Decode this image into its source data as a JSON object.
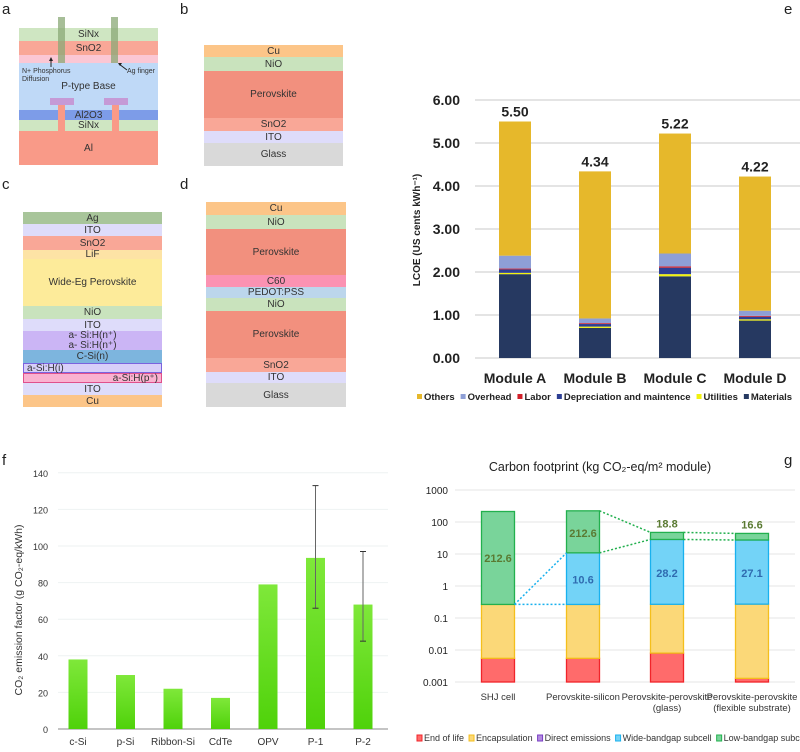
{
  "panels": {
    "a": {
      "label": "a",
      "layers": [
        {
          "name": "SiNx",
          "color": "#cfe6c2"
        },
        {
          "name": "SnO2",
          "sub": "2",
          "base": "SnO",
          "color": "#f9a797"
        },
        {
          "name": "",
          "color": "#fbc7d4"
        },
        {
          "name": "P-type Base",
          "color": "#bfd9f7"
        },
        {
          "name": "Al2O3",
          "base": "Al",
          "mid": "O",
          "sub1": "2",
          "sub": "3",
          "color": "#7d9ce8"
        },
        {
          "name": "SiNx",
          "color": "#cfe6c2"
        },
        {
          "name": "Al",
          "color": "#f99a88"
        }
      ],
      "annotations": {
        "diffusion": "N+ Phosphorus Diffusion",
        "finger": "Ag finger"
      },
      "colors": {
        "finger": "#8aa876",
        "pad": "#c59ad6",
        "post": "#f99a88"
      }
    },
    "b": {
      "label": "b",
      "layers": [
        {
          "name": "Cu",
          "color": "#fcc588"
        },
        {
          "name": "NiO",
          "color": "#c9e3bd"
        },
        {
          "name": "Perovskite",
          "color": "#f2907e"
        },
        {
          "name": "SnO2",
          "base": "SnO",
          "sub": "2",
          "color": "#f9a797"
        },
        {
          "name": "ITO",
          "color": "#dedcfa"
        },
        {
          "name": "Glass",
          "color": "#d9d9d9"
        }
      ]
    },
    "c": {
      "label": "c",
      "layers": [
        {
          "name": "Ag",
          "color": "#a8c59a"
        },
        {
          "name": "ITO",
          "color": "#dedcfa"
        },
        {
          "name": "SnO2",
          "base": "SnO",
          "sub": "2",
          "color": "#f9a797"
        },
        {
          "name": "LiF",
          "color": "#fde3a5"
        },
        {
          "name": "Wide-Eg Perovskite",
          "color": "#fdeb9a"
        },
        {
          "name": "NiO",
          "color": "#c9e3bd"
        },
        {
          "name": "ITO",
          "color": "#dedcfa"
        },
        {
          "name": "a- Si:H(n⁺)",
          "color": "#cbb5f5"
        },
        {
          "name": "a- Si:H(n⁺)",
          "color": "#cbb5f5"
        },
        {
          "name": "C-Si(n)",
          "color": "#7db5de"
        },
        {
          "name": "a-Si:H(i)",
          "color": "#d8cff9",
          "align": "left",
          "border": "#7a63df"
        },
        {
          "name": "a-Si:H(p⁺)",
          "color": "#fab2d0",
          "align": "right",
          "border": "#e0508c"
        },
        {
          "name": "ITO",
          "color": "#dedcfa"
        },
        {
          "name": "Cu",
          "color": "#fcc588"
        }
      ]
    },
    "d": {
      "label": "d",
      "layers": [
        {
          "name": "Cu",
          "color": "#fcc588"
        },
        {
          "name": "NiO",
          "color": "#c9e3bd"
        },
        {
          "name": "Perovskite",
          "color": "#f2907e"
        },
        {
          "name": "C60",
          "base": "C",
          "sub": "60",
          "color": "#fb92b2"
        },
        {
          "name": "PEDOT:PSS",
          "color": "#bcd6ec"
        },
        {
          "name": "NiO",
          "color": "#c9e3bd"
        },
        {
          "name": "Perovskite",
          "color": "#f2907e"
        },
        {
          "name": "SnO2",
          "base": "SnO",
          "sub": "2",
          "color": "#f9a797"
        },
        {
          "name": "ITO",
          "color": "#dedcfa"
        },
        {
          "name": "Glass",
          "color": "#d9d9d9"
        }
      ]
    },
    "e": {
      "label": "e"
    },
    "f": {
      "label": "f"
    },
    "g": {
      "label": "g"
    }
  },
  "chart_data": [
    {
      "id": "e",
      "type": "bar",
      "stacked": true,
      "categories": [
        "Module A",
        "Module B",
        "Module C",
        "Module D"
      ],
      "ylabel": "LCOE (US cents kWh⁻¹)",
      "ylim": [
        0,
        6
      ],
      "yticks": [
        "0.00",
        "1.00",
        "2.00",
        "3.00",
        "4.00",
        "5.00",
        "6.00"
      ],
      "grid": true,
      "legend_position": "bottom",
      "totals": [
        "5.50",
        "4.34",
        "5.22",
        "4.22"
      ],
      "series": [
        {
          "name": "Materials",
          "color": "#263961",
          "values": [
            1.95,
            0.7,
            1.9,
            0.87
          ]
        },
        {
          "name": "Utilities",
          "color": "#f2f20f",
          "values": [
            0.03,
            0.03,
            0.05,
            0.03
          ]
        },
        {
          "name": "Depreciation and maintence",
          "color": "#2d3f94",
          "values": [
            0.08,
            0.06,
            0.15,
            0.06
          ]
        },
        {
          "name": "Labor",
          "color": "#d2202a",
          "values": [
            0.02,
            0.02,
            0.03,
            0.02
          ]
        },
        {
          "name": "Overhead",
          "color": "#8e9fd6",
          "values": [
            0.3,
            0.11,
            0.3,
            0.12
          ]
        },
        {
          "name": "Others",
          "color": "#e6b82b",
          "values": [
            3.12,
            3.42,
            2.79,
            3.12
          ]
        }
      ],
      "legend_order": [
        "Others",
        "Overhead",
        "Labor",
        "Depreciation and maintence",
        "Utilities",
        "Materials"
      ]
    },
    {
      "id": "f",
      "type": "bar",
      "categories": [
        "c-Si",
        "p-Si",
        "Ribbon-Si",
        "CdTe",
        "OPV",
        "P-1",
        "P-2"
      ],
      "values": [
        38,
        29.5,
        22,
        17,
        79,
        93.5,
        68
      ],
      "error_low": [
        null,
        null,
        null,
        null,
        null,
        66,
        48
      ],
      "error_high": [
        null,
        null,
        null,
        null,
        null,
        133,
        97
      ],
      "ylabel": "CO₂ emission factor (g CO₂-eq/kWh)",
      "ylim": [
        0,
        140
      ],
      "yticks": [
        "0",
        "20",
        "40",
        "60",
        "80",
        "100",
        "120",
        "140"
      ],
      "grid": true,
      "color": "#5fe01a"
    },
    {
      "id": "g",
      "type": "bar",
      "stacked": true,
      "yscale": "log",
      "title": "Carbon footprint (kg CO₂-eq/m² module)",
      "categories": [
        "SHJ cell",
        "Perovskite-silicon",
        "Perovskite-perovskite\n(glass)",
        "Perovskite-perovskite\n(flexible substrate)"
      ],
      "ylim": [
        0.001,
        1000
      ],
      "yticks": [
        "0.001",
        "0.01",
        "0.1",
        "1",
        "10",
        "100",
        "1000"
      ],
      "grid": true,
      "legend_position": "bottom",
      "series": [
        {
          "name": "End of life",
          "color": "#ff6b6b",
          "edge": "#f0242a",
          "values": [
            0.0055,
            0.0055,
            0.008,
            0.0013
          ]
        },
        {
          "name": "Encapsulation",
          "color": "#fbd878",
          "edge": "#f4bf1c",
          "values": [
            0.26,
            0.26,
            0.26,
            0.27
          ]
        },
        {
          "name": "Direct emissions",
          "color": "#b38be0",
          "edge": "#7a3fc4",
          "values": [
            0,
            0,
            0,
            0
          ]
        },
        {
          "name": "Wide-bandgap subcell",
          "color": "#73d3f7",
          "edge": "#19b1ee",
          "values": [
            0,
            10.6,
            28.2,
            27.1
          ]
        },
        {
          "name": "Low-bandgap subcell",
          "color": "#79d49a",
          "edge": "#22b04e",
          "values": [
            212.6,
            212.6,
            18.8,
            16.6
          ]
        }
      ],
      "data_labels": [
        {
          "bar": 0,
          "series": "Low-bandgap subcell",
          "text": "212.6"
        },
        {
          "bar": 1,
          "series": "Low-bandgap subcell",
          "text": "212.6"
        },
        {
          "bar": 1,
          "series": "Wide-bandgap subcell",
          "text": "10.6"
        },
        {
          "bar": 2,
          "series": "Wide-bandgap subcell",
          "text": "28.2"
        },
        {
          "bar": 2,
          "series": "Low-bandgap subcell",
          "text": "18.8"
        },
        {
          "bar": 3,
          "series": "Wide-bandgap subcell",
          "text": "27.1"
        },
        {
          "bar": 3,
          "series": "Low-bandgap subcell",
          "text": "16.6"
        }
      ]
    }
  ]
}
